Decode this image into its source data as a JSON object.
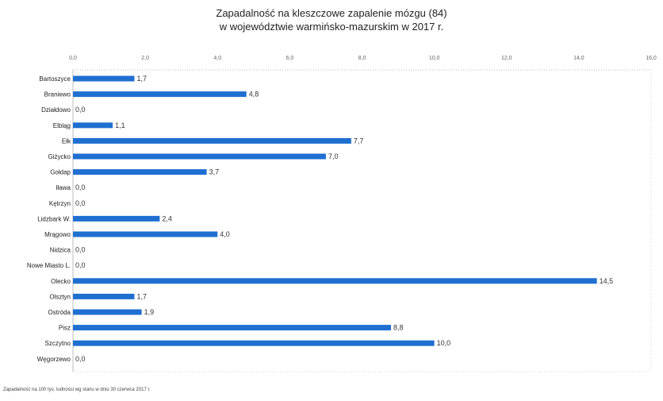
{
  "title": {
    "line1": "Zapadalność na kleszczowe zapalenie mózgu (84)",
    "line2": "w województwie warmińsko-mazurskim w 2017 r."
  },
  "footnote": "Zapadalność na 100 tys. ludności wg stanu w dniu 30 czerwca 2017 r.",
  "colors": {
    "bar": "#1f6fd1",
    "grid": "#d9d9d9",
    "axis": "#bdbdbd"
  },
  "chart_data": {
    "type": "bar",
    "orientation": "horizontal",
    "categories": [
      "Bartoszyce",
      "Braniewo",
      "Działdowo",
      "Elbląg",
      "Ełk",
      "Giżycko",
      "Gołdap",
      "Iława",
      "Kętrzyn",
      "Lidzbark W.",
      "Mrągowo",
      "Nidzica",
      "Nowe Miasto L.",
      "Olecko",
      "Olsztyn",
      "Ostróda",
      "Pisz",
      "Szczytno",
      "Węgorzewo"
    ],
    "values": [
      1.7,
      4.8,
      0.0,
      1.1,
      7.7,
      7.0,
      3.7,
      0.0,
      0.0,
      2.4,
      4.0,
      0.0,
      0.0,
      14.5,
      1.7,
      1.9,
      8.8,
      10.0,
      0.0
    ],
    "value_labels": [
      "1,7",
      "4,8",
      "0,0",
      "1,1",
      "7,7",
      "7,0",
      "3,7",
      "0,0",
      "0,0",
      "2,4",
      "4,0",
      "0,0",
      "0,0",
      "14,5",
      "1,7",
      "1,9",
      "8,8",
      "10,0",
      "0,0"
    ],
    "xlim": [
      0,
      16
    ],
    "x_ticks": [
      0,
      2,
      4,
      6,
      8,
      10,
      12,
      14,
      16
    ],
    "x_tick_labels": [
      "0,0",
      "2,0",
      "4,0",
      "6,0",
      "8,0",
      "10,0",
      "12,0",
      "14,0",
      "16,0"
    ],
    "axis_position": "top",
    "grid": true
  }
}
